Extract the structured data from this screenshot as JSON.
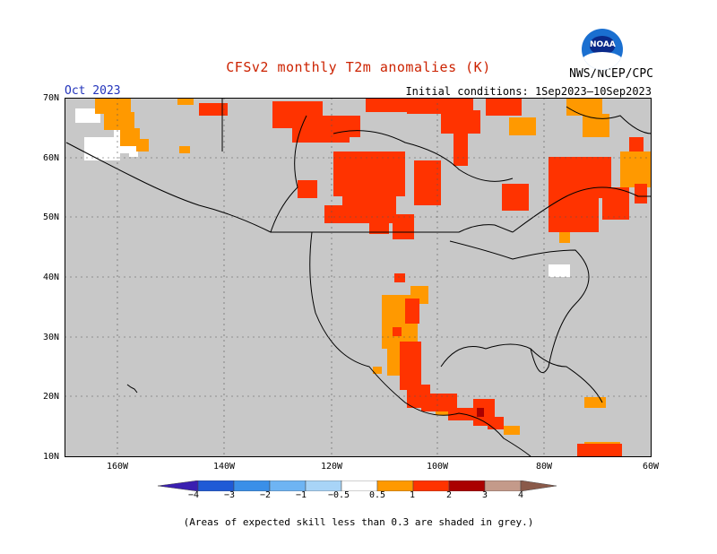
{
  "title": "CFSv2 monthly T2m anomalies (K)",
  "month": "Oct 2023",
  "agency": "NWS/NCEP/CPC",
  "initial_conditions": "Initial conditions: 1Sep2023–10Sep2023",
  "logo_text": "NOAA",
  "footnote": "(Areas of expected skill less than 0.3 are shaded in grey.)",
  "lat_labels": [
    "70N",
    "60N",
    "50N",
    "40N",
    "30N",
    "20N",
    "10N"
  ],
  "lon_labels": [
    "160W",
    "140W",
    "120W",
    "100W",
    "80W",
    "60W"
  ],
  "colorbar": {
    "labels": [
      "−4",
      "−3",
      "−2",
      "−1",
      "−0.5",
      "0.5",
      "1",
      "2",
      "3",
      "4"
    ],
    "colors": [
      "#3a1fb0",
      "#1f5ad6",
      "#3a8fe8",
      "#6eb4f3",
      "#a8d4f7",
      "#ffffff",
      "#ff9900",
      "#ff3300",
      "#aa0000",
      "#c49a8a",
      "#8a5a4a"
    ]
  },
  "colors": {
    "grey": "#c8c8c8",
    "orange": "#ff9900",
    "red": "#ff3300",
    "darkred": "#aa0000"
  }
}
